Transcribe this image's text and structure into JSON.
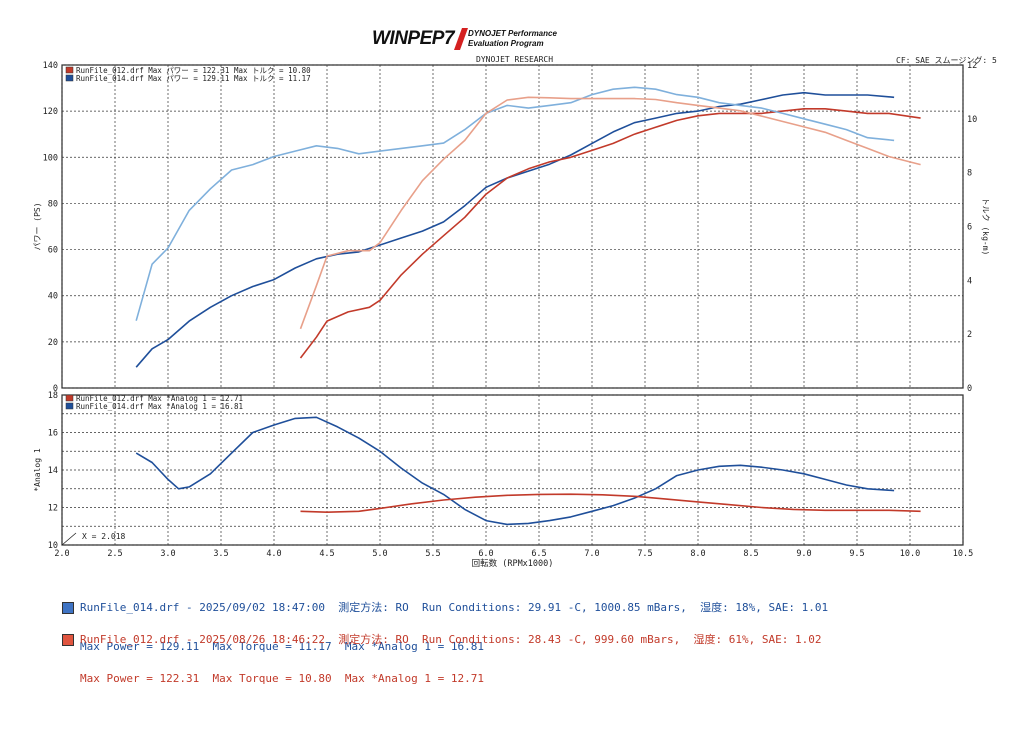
{
  "logo": {
    "brand": "WINPEP7",
    "line1": "DYNOJET Performance",
    "line2": "Evaluation Program"
  },
  "header": {
    "center": "DYNOJET RESEARCH",
    "right": "CF: SAE  スムージング: 5"
  },
  "colors": {
    "run014": "#1f4f9a",
    "run014_light": "#7fb0dc",
    "run012": "#c23a2a",
    "run012_light": "#e8a08a",
    "grid": "#333333"
  },
  "chart_data": [
    {
      "type": "line",
      "ylabel_left": "パワー (PS)",
      "ylabel_right": "トルク (kg-m)",
      "ylim_left": [
        0,
        140
      ],
      "ylim_right": [
        0,
        12
      ],
      "xlim": [
        2.0,
        10.5
      ],
      "yticks_left": [
        "0",
        "20",
        "40",
        "60",
        "80",
        "100",
        "120",
        "140"
      ],
      "yticks_right": [
        "0",
        "2",
        "4",
        "6",
        "8",
        "10",
        "12"
      ],
      "legend": [
        {
          "text": "RunFile_012.drf Max パワー = 122.31      Max トルク = 10.80",
          "color": "#c23a2a"
        },
        {
          "text": "RunFile_014.drf Max パワー = 129.11      Max トルク = 11.17",
          "color": "#1f4f9a"
        }
      ],
      "series": [
        {
          "name": "RunFile_014.drf",
          "axis": "power",
          "color": "#1f4f9a",
          "x": [
            2.7,
            2.85,
            3.0,
            3.2,
            3.4,
            3.6,
            3.8,
            4.0,
            4.2,
            4.4,
            4.6,
            4.8,
            5.0,
            5.2,
            5.4,
            5.6,
            5.8,
            6.0,
            6.2,
            6.4,
            6.6,
            6.8,
            7.0,
            7.2,
            7.4,
            7.6,
            7.8,
            8.0,
            8.2,
            8.4,
            8.6,
            8.8,
            9.0,
            9.2,
            9.4,
            9.6,
            9.85
          ],
          "y": [
            9,
            17,
            21,
            29,
            35,
            40,
            44,
            47,
            52,
            56,
            58,
            59,
            62,
            65,
            68,
            72,
            79,
            87,
            91,
            94,
            97,
            101,
            106,
            111,
            115,
            117,
            119,
            120,
            122,
            123,
            125,
            127,
            128,
            127,
            127,
            127,
            126
          ]
        },
        {
          "name": "RunFile_012.drf",
          "axis": "power",
          "color": "#c23a2a",
          "x": [
            4.25,
            4.4,
            4.5,
            4.7,
            4.9,
            5.0,
            5.2,
            5.4,
            5.6,
            5.8,
            6.0,
            6.2,
            6.4,
            6.6,
            6.8,
            7.0,
            7.2,
            7.4,
            7.6,
            7.8,
            8.0,
            8.2,
            8.4,
            8.6,
            8.8,
            9.0,
            9.2,
            9.4,
            9.6,
            9.8,
            10.1
          ],
          "y": [
            13,
            22,
            29,
            33,
            35,
            38,
            49,
            58,
            66,
            74,
            84,
            91,
            95,
            98,
            100,
            103,
            106,
            110,
            113,
            116,
            118,
            119,
            119,
            119,
            120,
            121,
            121,
            120,
            119,
            119,
            117
          ]
        },
        {
          "name": "RunFile_014.drf",
          "axis": "torque",
          "color": "#7fb0dc",
          "x": [
            2.7,
            2.85,
            3.0,
            3.2,
            3.4,
            3.6,
            3.8,
            4.0,
            4.2,
            4.4,
            4.6,
            4.8,
            5.0,
            5.2,
            5.4,
            5.6,
            5.8,
            6.0,
            6.2,
            6.4,
            6.6,
            6.8,
            7.0,
            7.2,
            7.4,
            7.6,
            7.8,
            8.0,
            8.2,
            8.4,
            8.6,
            8.8,
            9.0,
            9.2,
            9.4,
            9.6,
            9.85
          ],
          "y": [
            2.5,
            4.6,
            5.2,
            6.6,
            7.4,
            8.1,
            8.3,
            8.6,
            8.8,
            9.0,
            8.9,
            8.7,
            8.8,
            8.9,
            9.0,
            9.1,
            9.6,
            10.2,
            10.5,
            10.4,
            10.5,
            10.6,
            10.9,
            11.1,
            11.17,
            11.1,
            10.9,
            10.8,
            10.6,
            10.5,
            10.4,
            10.2,
            10.0,
            9.8,
            9.6,
            9.3,
            9.2
          ]
        },
        {
          "name": "RunFile_012.drf",
          "axis": "torque",
          "color": "#e8a08a",
          "x": [
            4.25,
            4.4,
            4.5,
            4.7,
            4.9,
            5.0,
            5.2,
            5.4,
            5.6,
            5.8,
            6.0,
            6.2,
            6.4,
            6.6,
            6.8,
            7.0,
            7.2,
            7.4,
            7.6,
            7.8,
            8.0,
            8.2,
            8.4,
            8.6,
            8.8,
            9.0,
            9.2,
            9.4,
            9.6,
            9.8,
            10.1
          ],
          "y": [
            2.2,
            3.8,
            4.9,
            5.1,
            5.1,
            5.4,
            6.6,
            7.7,
            8.5,
            9.2,
            10.2,
            10.7,
            10.8,
            10.78,
            10.75,
            10.75,
            10.75,
            10.75,
            10.72,
            10.6,
            10.5,
            10.4,
            10.3,
            10.1,
            9.9,
            9.7,
            9.5,
            9.2,
            8.9,
            8.6,
            8.3
          ]
        }
      ]
    },
    {
      "type": "line",
      "ylabel": "*Analog 1",
      "ylim": [
        10,
        18
      ],
      "xlim": [
        2.0,
        10.5
      ],
      "xlabel": "回転数 (RPMx1000)",
      "yticks": [
        "10",
        "12",
        "14",
        "16",
        "18"
      ],
      "xticks": [
        "2.0",
        "2.5",
        "3.0",
        "3.5",
        "4.0",
        "4.5",
        "5.0",
        "5.5",
        "6.0",
        "6.5",
        "7.0",
        "7.5",
        "8.0",
        "8.5",
        "9.0",
        "9.5",
        "10.0",
        "10.5"
      ],
      "annotation": "X = 2.018",
      "legend": [
        {
          "text": "RunFile_012.drf Max *Analog 1 = 12.71",
          "color": "#c23a2a"
        },
        {
          "text": "RunFile_014.drf Max *Analog 1 = 16.81",
          "color": "#1f4f9a"
        }
      ],
      "series": [
        {
          "name": "RunFile_014.drf",
          "color": "#1f4f9a",
          "x": [
            2.7,
            2.85,
            3.0,
            3.1,
            3.2,
            3.4,
            3.6,
            3.8,
            4.0,
            4.2,
            4.4,
            4.6,
            4.8,
            5.0,
            5.2,
            5.4,
            5.6,
            5.8,
            6.0,
            6.2,
            6.4,
            6.6,
            6.8,
            7.0,
            7.2,
            7.4,
            7.6,
            7.8,
            8.0,
            8.2,
            8.4,
            8.6,
            8.8,
            9.0,
            9.2,
            9.4,
            9.6,
            9.85
          ],
          "y": [
            14.9,
            14.4,
            13.5,
            13.0,
            13.1,
            13.8,
            14.9,
            16.0,
            16.4,
            16.75,
            16.81,
            16.3,
            15.7,
            15.0,
            14.1,
            13.3,
            12.7,
            11.9,
            11.3,
            11.1,
            11.15,
            11.3,
            11.5,
            11.8,
            12.1,
            12.5,
            13.0,
            13.7,
            14.0,
            14.2,
            14.25,
            14.15,
            14.0,
            13.8,
            13.5,
            13.2,
            13.0,
            12.9
          ]
        },
        {
          "name": "RunFile_012.drf",
          "color": "#c23a2a",
          "x": [
            4.25,
            4.5,
            4.8,
            5.0,
            5.3,
            5.6,
            5.9,
            6.2,
            6.5,
            6.8,
            7.1,
            7.4,
            7.7,
            8.0,
            8.3,
            8.6,
            8.9,
            9.2,
            9.5,
            9.8,
            10.1
          ],
          "y": [
            11.8,
            11.75,
            11.8,
            11.95,
            12.2,
            12.4,
            12.55,
            12.65,
            12.7,
            12.71,
            12.68,
            12.6,
            12.45,
            12.3,
            12.15,
            12.0,
            11.9,
            11.85,
            11.85,
            11.85,
            11.8
          ]
        }
      ]
    }
  ],
  "runs": [
    {
      "line1": "RunFile_014.drf - 2025/09/02 18:47:00  測定方法: RO  Run Conditions: 29.91 -C, 1000.85 mBars,  湿度: 18%, SAE: 1.01",
      "line2": "Max Power = 129.11  Max Torque = 11.17  Max *Analog 1 = 16.81",
      "color": "#1f4f9a"
    },
    {
      "line1": "RunFile_012.drf - 2025/08/26 18:46:22  測定方法: RO  Run Conditions: 28.43 -C, 999.60 mBars,  湿度: 61%, SAE: 1.02",
      "line2": "Max Power = 122.31  Max Torque = 10.80  Max *Analog 1 = 12.71",
      "color": "#c23a2a"
    }
  ]
}
